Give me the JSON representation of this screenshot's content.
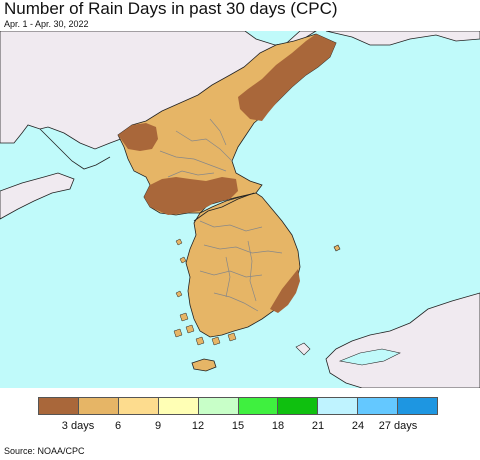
{
  "header": {
    "title": "Number of Rain Days in past 30 days (CPC)",
    "subtitle": "Apr. 1 - Apr. 30, 2022"
  },
  "map": {
    "colors": {
      "sea": "#c0fafa",
      "land_other": "#f0eaf0",
      "low_1_3": "#a9673a",
      "low_3_6": "#e6b566",
      "border": "#888888",
      "coast": "#222222"
    }
  },
  "legend": {
    "swatches": [
      {
        "color": "#a9673a"
      },
      {
        "color": "#e6b566"
      },
      {
        "color": "#fddc8e"
      },
      {
        "color": "#ffffb5"
      },
      {
        "color": "#c8ffc8"
      },
      {
        "color": "#3ff03f"
      },
      {
        "color": "#0fc00f"
      },
      {
        "color": "#bff3ff"
      },
      {
        "color": "#64c8ff"
      },
      {
        "color": "#1e96e1"
      }
    ],
    "ticks": [
      "3 days",
      "6",
      "9",
      "12",
      "15",
      "18",
      "21",
      "24",
      "27 days"
    ]
  },
  "footer": {
    "source": "Source: NOAA/CPC"
  }
}
